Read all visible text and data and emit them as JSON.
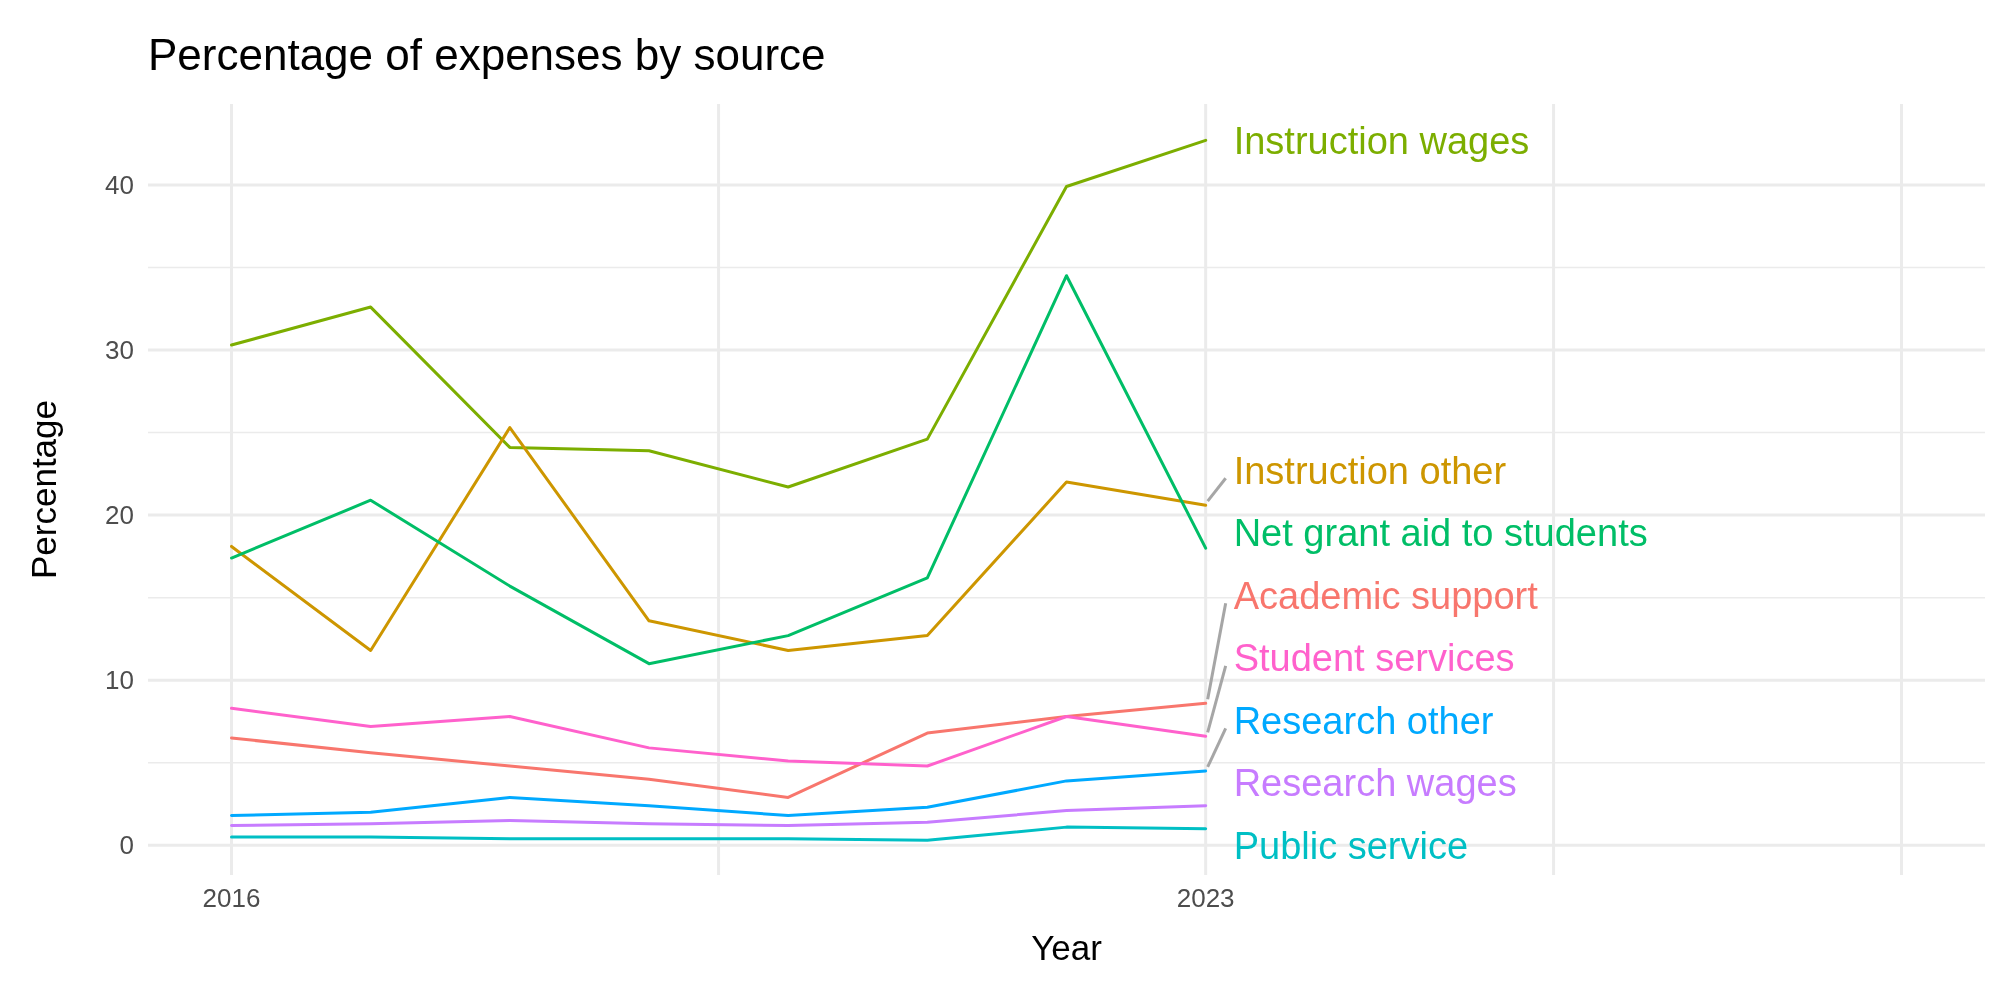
{
  "chart_data": {
    "type": "line",
    "title": "Percentage of expenses by source",
    "xlabel": "Year",
    "ylabel": "Percentage",
    "x": [
      2016,
      2017,
      2018,
      2019,
      2020,
      2021,
      2022,
      2023
    ],
    "xlim": [
      2015.4,
      2028.6
    ],
    "xticks": [
      2016,
      {
        "value": 2019.5,
        "label": null
      },
      2023,
      {
        "value": 2025.5,
        "label": null
      },
      {
        "value": 2028,
        "label": null
      }
    ],
    "ylim": [
      -1.8,
      44.9
    ],
    "yticks": [
      0,
      {
        "value": 5,
        "label": null
      },
      10,
      {
        "value": 15,
        "label": null
      },
      20,
      {
        "value": 25,
        "label": null
      },
      30,
      {
        "value": 35,
        "label": null
      },
      40
    ],
    "grid": true,
    "legend": false,
    "marker": "none",
    "line_style": "solid",
    "series": [
      {
        "name": "Instruction wages",
        "color": "#7cae00",
        "values": [
          30.3,
          32.6,
          24.1,
          23.9,
          21.7,
          24.6,
          39.9,
          42.7
        ]
      },
      {
        "name": "Instruction other",
        "color": "#cd9600",
        "values": [
          18.1,
          11.8,
          25.3,
          13.6,
          11.8,
          12.7,
          22.0,
          20.6
        ]
      },
      {
        "name": "Net grant aid to students",
        "color": "#00be67",
        "values": [
          17.4,
          20.9,
          15.7,
          11.0,
          12.7,
          16.2,
          34.5,
          18.0
        ]
      },
      {
        "name": "Academic support",
        "color": "#f8766d",
        "values": [
          6.5,
          5.6,
          4.8,
          4.0,
          2.9,
          6.8,
          7.8,
          8.6
        ]
      },
      {
        "name": "Student services",
        "color": "#ff61cc",
        "values": [
          8.3,
          7.2,
          7.8,
          5.9,
          5.1,
          4.8,
          7.8,
          6.6
        ]
      },
      {
        "name": "Research other",
        "color": "#00a9ff",
        "values": [
          1.8,
          2.0,
          2.9,
          2.4,
          1.8,
          2.3,
          3.9,
          4.5
        ]
      },
      {
        "name": "Research wages",
        "color": "#c77cff",
        "values": [
          1.2,
          1.3,
          1.5,
          1.3,
          1.2,
          1.4,
          2.1,
          2.4
        ]
      },
      {
        "name": "Public service",
        "color": "#00bfc4",
        "values": [
          0.5,
          0.5,
          0.4,
          0.4,
          0.4,
          0.3,
          1.1,
          1.0
        ]
      }
    ]
  }
}
